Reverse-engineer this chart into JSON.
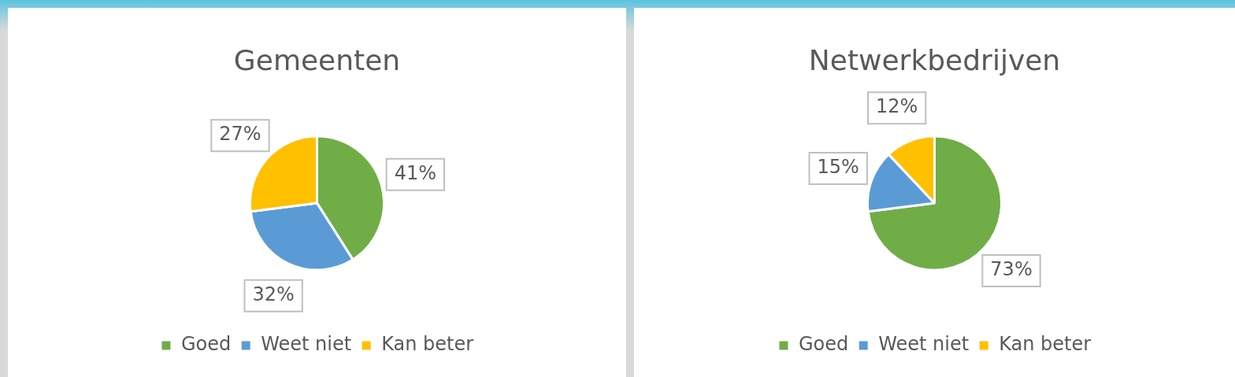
{
  "chart_data": [
    {
      "type": "pie",
      "title": "Gemeenten",
      "categories": [
        "Goed",
        "Weet niet",
        "Kan beter"
      ],
      "values": [
        41,
        32,
        27
      ],
      "value_labels": [
        "41%",
        "32%",
        "27%"
      ],
      "colors": [
        "#70ad47",
        "#5b9bd5",
        "#ffc000"
      ],
      "legend": "bottom"
    },
    {
      "type": "pie",
      "title": "Netwerkbedrijven",
      "categories": [
        "Goed",
        "Weet niet",
        "Kan beter"
      ],
      "values": [
        73,
        15,
        12
      ],
      "value_labels": [
        "73%",
        "15%",
        "12%"
      ],
      "colors": [
        "#70ad47",
        "#5b9bd5",
        "#ffc000"
      ],
      "legend": "bottom"
    }
  ]
}
